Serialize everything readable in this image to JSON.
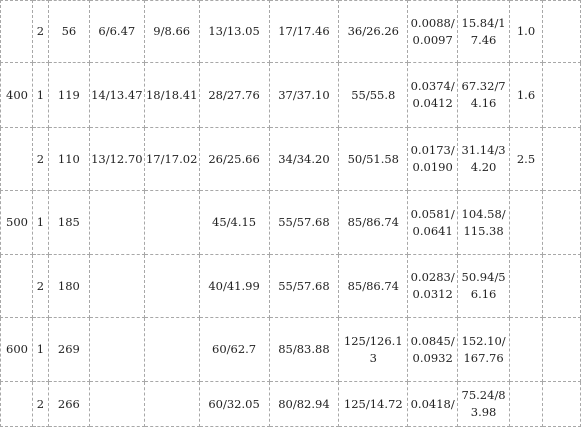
{
  "rows": [
    [
      "",
      "2",
      "56",
      "6/6.47",
      "9/8.66",
      "13/13.05",
      "17/17.46",
      "36/26.26",
      "0.0088/0.0097",
      "15.84/17.46",
      "1.0",
      ""
    ],
    [
      "400",
      "1",
      "119",
      "14/13.47",
      "18/18.41",
      "28/27.76",
      "37/37.10",
      "55/55.8",
      "0.0374/0.0412",
      "67.32/74.16",
      "1.6",
      ""
    ],
    [
      "",
      "2",
      "110",
      "13/12.70",
      "17/17.02",
      "26/25.66",
      "34/34.20",
      "50/51.58",
      "0.0173/0.0190",
      "31.14/34.20",
      "2.5",
      ""
    ],
    [
      "500",
      "1",
      "185",
      "",
      "",
      "45/4.15",
      "55/57.68",
      "85/86.74",
      "0.0581/0.0641",
      "104.58/115.38",
      "",
      ""
    ],
    [
      "",
      "2",
      "180",
      "",
      "",
      "40/41.99",
      "55/57.68",
      "85/86.74",
      "0.0283/0.0312",
      "50.94/56.16",
      "",
      ""
    ],
    [
      "600",
      "1",
      "269",
      "",
      "",
      "60/62.7",
      "85/83.88",
      "125/126.13",
      "0.0845/0.0932",
      "152.10/167.76",
      "",
      ""
    ],
    [
      "",
      "2",
      "266",
      "",
      "",
      "60/32.05",
      "80/82.94",
      "125/14.72",
      "0.0418/",
      "75.24/83.98",
      "",
      ""
    ]
  ]
}
